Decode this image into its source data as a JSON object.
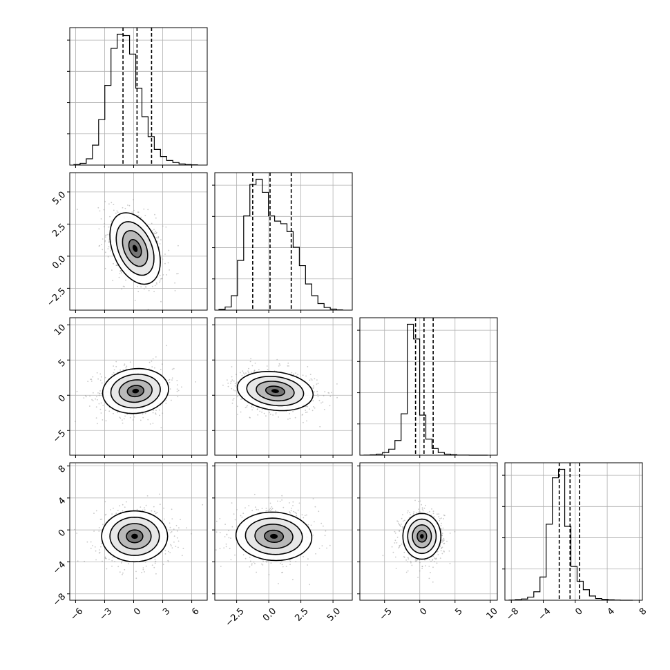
{
  "colors": {
    "background": "#ffffff",
    "frame": "#000000",
    "grid": "#b0b0b0",
    "density": "#000000",
    "scatter": "#9a9a9a"
  },
  "chart_data": {
    "type": "corner",
    "title": "",
    "n_params": 4,
    "grid": true,
    "quantile_style": "dashed",
    "params": [
      {
        "label": "",
        "range": [
          -6.6,
          7.6
        ],
        "tick_labels": [
          "−6",
          "−3",
          "0",
          "3",
          "6"
        ],
        "ticks": [
          -6,
          -3,
          0,
          3,
          6
        ],
        "quantiles": [
          -1.1,
          0.35,
          1.85
        ],
        "mean": 0.3,
        "sd": 1.55
      },
      {
        "label": "",
        "range": [
          -4.2,
          6.5
        ],
        "tick_labels": [
          "−2.5",
          "0.0",
          "2.5",
          "5.0"
        ],
        "ticks": [
          -2.5,
          0.0,
          2.5,
          5.0
        ],
        "quantiles": [
          -1.25,
          0.1,
          1.75
        ],
        "mean": 0.2,
        "sd": 1.35
      },
      {
        "label": "",
        "range": [
          -8.5,
          11.0
        ],
        "tick_labels": [
          "−5",
          "0",
          "5",
          "10"
        ],
        "ticks": [
          -5,
          0,
          5,
          10
        ],
        "quantiles": [
          -0.6,
          0.6,
          1.9
        ],
        "mean": 0.6,
        "sd": 1.45
      },
      {
        "label": "",
        "range": [
          -8.8,
          8.4
        ],
        "tick_labels": [
          "−8",
          "−4",
          "0",
          "4",
          "8"
        ],
        "ticks": [
          -8,
          -4,
          0,
          4,
          8
        ],
        "quantiles": [
          -2.0,
          -0.65,
          0.55
        ],
        "mean": -0.7,
        "sd": 1.2
      }
    ],
    "histograms": [
      {
        "param": 0,
        "bins": 20,
        "counts": [
          2,
          6,
          22,
          70,
          160,
          280,
          410,
          460,
          455,
          390,
          270,
          170,
          100,
          55,
          30,
          16,
          9,
          4,
          2,
          1
        ]
      },
      {
        "param": 1,
        "bins": 20,
        "counts": [
          3,
          12,
          55,
          190,
          360,
          480,
          500,
          450,
          360,
          340,
          330,
          300,
          240,
          170,
          100,
          55,
          25,
          10,
          4,
          1
        ]
      },
      {
        "param": 2,
        "bins": 20,
        "counts": [
          1,
          3,
          8,
          20,
          45,
          110,
          310,
          980,
          870,
          300,
          120,
          50,
          20,
          8,
          4,
          1,
          1,
          0,
          0,
          0
        ]
      },
      {
        "param": 3,
        "bins": 20,
        "counts": [
          1,
          3,
          6,
          15,
          40,
          110,
          360,
          580,
          620,
          350,
          160,
          90,
          50,
          20,
          8,
          4,
          2,
          1,
          0,
          0
        ]
      }
    ],
    "panels": [
      {
        "x": 0,
        "y": 1,
        "center": [
          0.15,
          0.6
        ],
        "cov": [
          [
            1.4,
            -0.55
          ],
          [
            -0.55,
            1.6
          ]
        ]
      },
      {
        "x": 0,
        "y": 2,
        "center": [
          0.2,
          0.6
        ],
        "cov": [
          [
            2.4,
            0.2
          ],
          [
            0.2,
            2.1
          ]
        ]
      },
      {
        "x": 1,
        "y": 2,
        "center": [
          0.5,
          0.6
        ],
        "cov": [
          [
            1.8,
            -0.3
          ],
          [
            -0.3,
            1.6
          ]
        ]
      },
      {
        "x": 0,
        "y": 3,
        "center": [
          0.1,
          -0.8
        ],
        "cov": [
          [
            2.4,
            0.0
          ],
          [
            0.0,
            2.1
          ]
        ]
      },
      {
        "x": 1,
        "y": 3,
        "center": [
          0.4,
          -0.8
        ],
        "cov": [
          [
            1.8,
            -0.1
          ],
          [
            -0.1,
            1.9
          ]
        ]
      },
      {
        "x": 2,
        "y": 3,
        "center": [
          0.3,
          -0.8
        ],
        "cov": [
          [
            1.5,
            0.0
          ],
          [
            0.0,
            1.7
          ]
        ]
      }
    ]
  }
}
